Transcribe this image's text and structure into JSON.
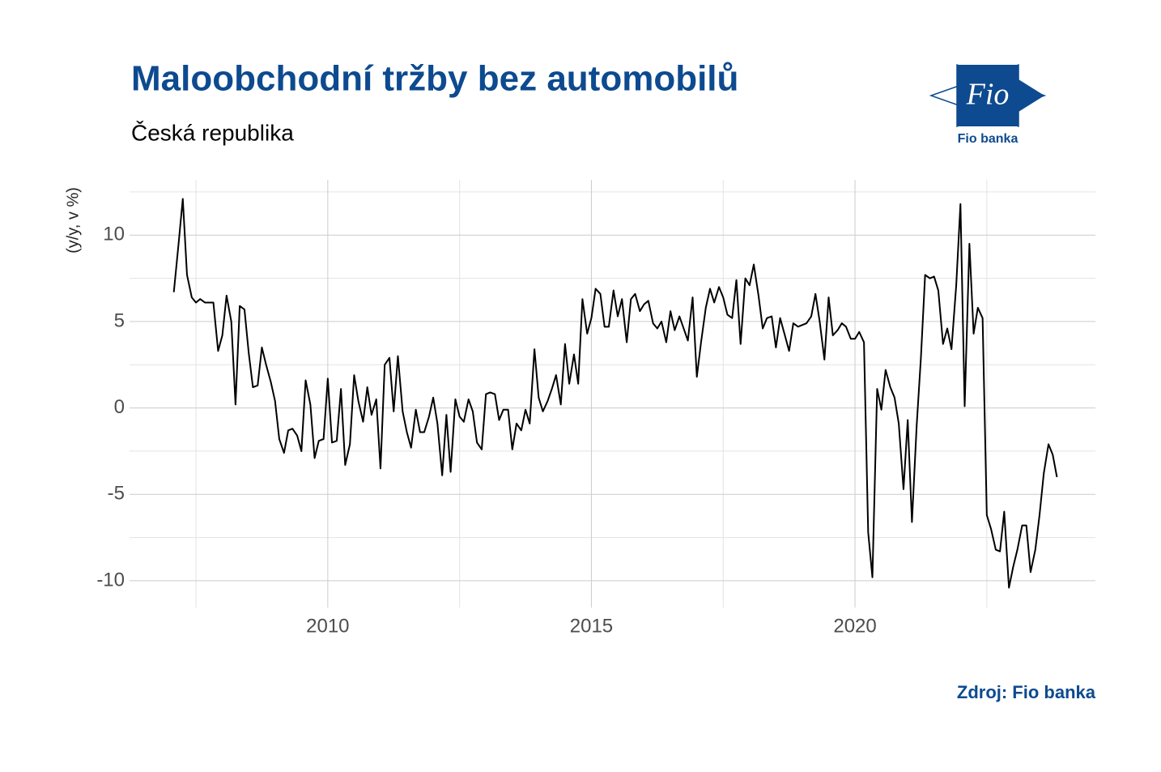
{
  "chart_data": {
    "type": "line",
    "title": "Maloobchodní tržby bez automobilů",
    "subtitle": "Česká republika",
    "y_label": "(y/y, v %)",
    "source": "Zdroj: Fio banka",
    "logo": {
      "mark": "Fio",
      "name": "Fio banka"
    },
    "color": "#000000",
    "grid": true,
    "xlim": [
      2006.24,
      2024.56
    ],
    "ylim": [
      -11.55,
      13.2
    ],
    "xticks": [
      2010,
      2015,
      2020
    ],
    "yticks": [
      -10,
      -5,
      0,
      5,
      10
    ],
    "xminor": [
      2007.5,
      2012.5,
      2017.5,
      2022.5
    ],
    "yminor": [
      -7.5,
      -2.5,
      2.5,
      7.5,
      12.5
    ],
    "x": [
      2007.08,
      2007.17,
      2007.25,
      2007.33,
      2007.42,
      2007.5,
      2007.58,
      2007.67,
      2007.75,
      2007.83,
      2007.92,
      2008,
      2008.08,
      2008.17,
      2008.25,
      2008.33,
      2008.42,
      2008.5,
      2008.58,
      2008.67,
      2008.75,
      2008.83,
      2008.92,
      2009,
      2009.08,
      2009.17,
      2009.25,
      2009.33,
      2009.42,
      2009.5,
      2009.58,
      2009.67,
      2009.75,
      2009.83,
      2009.92,
      2010,
      2010.08,
      2010.17,
      2010.25,
      2010.33,
      2010.42,
      2010.5,
      2010.58,
      2010.67,
      2010.75,
      2010.83,
      2010.92,
      2011,
      2011.08,
      2011.17,
      2011.25,
      2011.33,
      2011.42,
      2011.5,
      2011.58,
      2011.67,
      2011.75,
      2011.83,
      2011.92,
      2012,
      2012.08,
      2012.17,
      2012.25,
      2012.33,
      2012.42,
      2012.5,
      2012.58,
      2012.67,
      2012.75,
      2012.83,
      2012.92,
      2013,
      2013.08,
      2013.17,
      2013.25,
      2013.33,
      2013.42,
      2013.5,
      2013.58,
      2013.67,
      2013.75,
      2013.83,
      2013.92,
      2014,
      2014.08,
      2014.17,
      2014.25,
      2014.33,
      2014.42,
      2014.5,
      2014.58,
      2014.67,
      2014.75,
      2014.83,
      2014.92,
      2015,
      2015.08,
      2015.17,
      2015.25,
      2015.33,
      2015.42,
      2015.5,
      2015.58,
      2015.67,
      2015.75,
      2015.83,
      2015.92,
      2016,
      2016.08,
      2016.17,
      2016.25,
      2016.33,
      2016.42,
      2016.5,
      2016.58,
      2016.67,
      2016.75,
      2016.83,
      2016.92,
      2017,
      2017.08,
      2017.17,
      2017.25,
      2017.33,
      2017.42,
      2017.5,
      2017.58,
      2017.67,
      2017.75,
      2017.83,
      2017.92,
      2018,
      2018.08,
      2018.17,
      2018.25,
      2018.33,
      2018.42,
      2018.5,
      2018.58,
      2018.67,
      2018.75,
      2018.83,
      2018.92,
      2019,
      2019.08,
      2019.17,
      2019.25,
      2019.33,
      2019.42,
      2019.5,
      2019.58,
      2019.67,
      2019.75,
      2019.83,
      2019.92,
      2020,
      2020.08,
      2020.17,
      2020.25,
      2020.33,
      2020.42,
      2020.5,
      2020.58,
      2020.67,
      2020.75,
      2020.83,
      2020.92,
      2021,
      2021.08,
      2021.17,
      2021.25,
      2021.33,
      2021.42,
      2021.5,
      2021.58,
      2021.67,
      2021.75,
      2021.83,
      2021.92,
      2022,
      2022.08,
      2022.17,
      2022.25,
      2022.33,
      2022.42,
      2022.5,
      2022.58,
      2022.67,
      2022.75,
      2022.83,
      2022.92,
      2023,
      2023.08,
      2023.17,
      2023.25,
      2023.33,
      2023.42,
      2023.5,
      2023.58,
      2023.67,
      2023.75,
      2023.83
    ],
    "values": [
      6.7,
      9.5,
      12.1,
      7.7,
      6.4,
      6.1,
      6.3,
      6.1,
      6.1,
      6.1,
      3.3,
      4.2,
      6.5,
      5.0,
      0.2,
      5.9,
      5.7,
      3.2,
      1.2,
      1.3,
      3.5,
      2.5,
      1.5,
      0.4,
      -1.8,
      -2.6,
      -1.3,
      -1.2,
      -1.6,
      -2.5,
      1.6,
      0.2,
      -2.9,
      -1.9,
      -1.8,
      1.7,
      -2.0,
      -1.9,
      1.1,
      -3.3,
      -2.1,
      1.9,
      0.4,
      -0.8,
      1.2,
      -0.4,
      0.5,
      -3.5,
      2.5,
      2.9,
      -0.2,
      3.0,
      -0.2,
      -1.4,
      -2.3,
      -0.1,
      -1.4,
      -1.4,
      -0.5,
      0.6,
      -0.9,
      -3.9,
      -0.4,
      -3.7,
      0.5,
      -0.5,
      -0.8,
      0.5,
      -0.2,
      -2.0,
      -2.4,
      0.8,
      0.9,
      0.8,
      -0.7,
      -0.1,
      -0.1,
      -2.4,
      -0.9,
      -1.3,
      -0.1,
      -0.9,
      3.4,
      0.6,
      -0.2,
      0.4,
      1.1,
      1.9,
      0.2,
      3.7,
      1.4,
      3.1,
      1.4,
      6.3,
      4.3,
      5.2,
      6.9,
      6.6,
      4.7,
      4.7,
      6.8,
      5.3,
      6.3,
      3.8,
      6.3,
      6.6,
      5.6,
      6.0,
      6.2,
      4.9,
      4.6,
      5.0,
      3.8,
      5.6,
      4.5,
      5.3,
      4.6,
      3.9,
      6.4,
      1.8,
      3.8,
      5.8,
      6.9,
      6.1,
      7.0,
      6.4,
      5.4,
      5.2,
      7.4,
      3.7,
      7.5,
      7.1,
      8.3,
      6.5,
      4.6,
      5.2,
      5.3,
      3.5,
      5.2,
      4.2,
      3.3,
      4.9,
      4.7,
      4.8,
      4.9,
      5.3,
      6.6,
      5.0,
      2.8,
      6.4,
      4.2,
      4.5,
      4.9,
      4.7,
      4.0,
      4.0,
      4.4,
      3.8,
      -7.2,
      -9.8,
      1.1,
      -0.1,
      2.2,
      1.2,
      0.6,
      -0.9,
      -4.7,
      -0.7,
      -6.6,
      -1.0,
      2.9,
      7.7,
      7.5,
      7.6,
      6.8,
      3.7,
      4.6,
      3.4,
      7.1,
      11.8,
      0.1,
      9.5,
      4.3,
      5.8,
      5.2,
      -6.2,
      -7.0,
      -8.2,
      -8.3,
      -6.0,
      -10.4,
      -9.2,
      -8.2,
      -6.8,
      -6.8,
      -9.5,
      -8.2,
      -6.2,
      -3.8,
      -2.1,
      -2.7,
      -4.0
    ]
  }
}
